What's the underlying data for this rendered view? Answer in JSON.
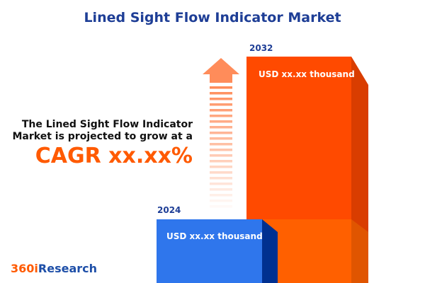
{
  "title": "Lined Sight Flow Indicator Market",
  "description": "The Lined Sight Flow Indicator Market is projected to grow at a",
  "cagr": "CAGR xx.xx%",
  "logo": {
    "part1": "360i",
    "part2": "Research"
  },
  "colors": {
    "bar_2024": "#2f76ec",
    "bar_2032": "#ff4a00",
    "arrow": "#ff8c5a",
    "title": "#1e3e96",
    "cagr": "#ff5a00"
  },
  "icons": {
    "arrow": "arrow-up-icon"
  },
  "chart_data": {
    "type": "bar",
    "categories": [
      "2024",
      "2032"
    ],
    "value_labels": [
      "USD xx.xx thousand",
      "USD xx.xx thousand"
    ],
    "title": "Lined Sight Flow Indicator Market"
  }
}
